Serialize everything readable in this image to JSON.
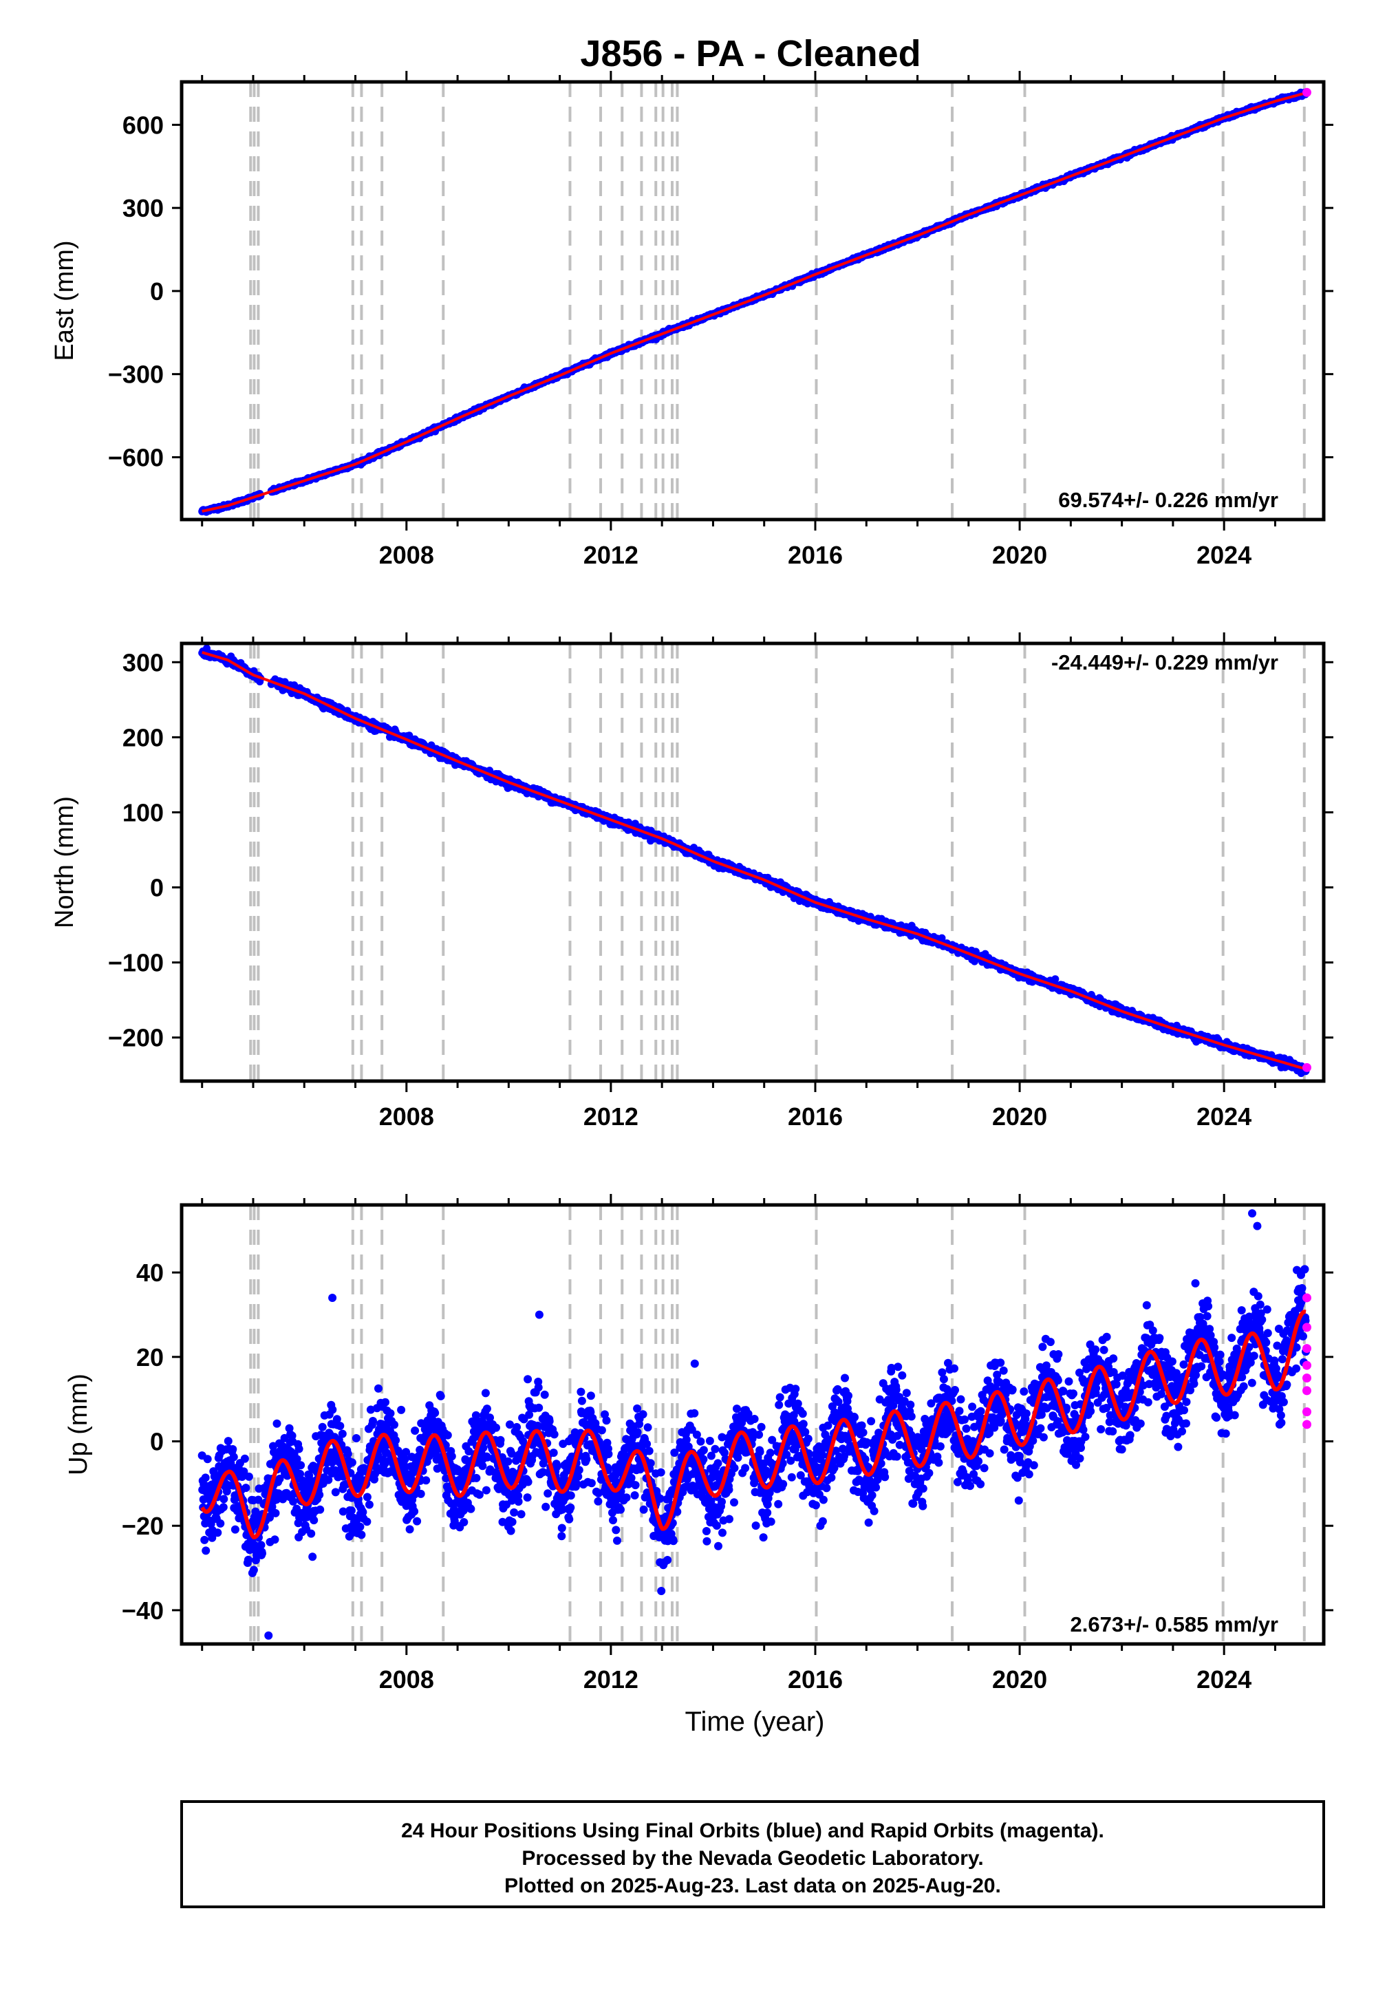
{
  "title": "J856  - PA - Cleaned",
  "colors": {
    "final_orbits": "#0000ff",
    "rapid_orbits": "#ff00ff",
    "model": "#ff0000",
    "event_lines": "#c0c0c0",
    "frame": "#000000"
  },
  "event_line_years": [
    2004.95,
    2005.02,
    2005.1,
    2006.95,
    2007.12,
    2007.52,
    2008.72,
    2011.2,
    2011.8,
    2012.22,
    2012.6,
    2012.88,
    2013.02,
    2013.2,
    2013.3,
    2016.02,
    2018.68,
    2020.1,
    2023.98,
    2025.57
  ],
  "chart_data": [
    {
      "type": "scatter",
      "panel": "east",
      "ylabel": "East (mm)",
      "xlabel": "",
      "xlim": [
        2003.6,
        2025.95
      ],
      "ylim": [
        -825,
        755
      ],
      "yticks": [
        -600,
        -300,
        0,
        300,
        600
      ],
      "xticks": [
        2008,
        2012,
        2016,
        2020,
        2024
      ],
      "grid": false,
      "rate_label": "69.574+/- 0.226 mm/yr",
      "rate_position": "bottom-right",
      "series": [
        {
          "x": [
            2004.0,
            2004.5,
            2005.0,
            2006.0,
            2007.0,
            2008.0,
            2009.0,
            2010.0,
            2011.0,
            2012.0,
            2013.0,
            2014.0,
            2015.0,
            2016.0,
            2017.0,
            2018.0,
            2019.0,
            2020.0,
            2021.0,
            2022.0,
            2023.0,
            2024.0,
            2025.0,
            2025.6
          ],
          "y": [
            -795,
            -775,
            -745,
            -685,
            -625,
            -545,
            -460,
            -380,
            -305,
            -225,
            -155,
            -85,
            -15,
            60,
            130,
            200,
            275,
            345,
            415,
            485,
            555,
            625,
            685,
            715
          ]
        }
      ],
      "rapid": {
        "x": [
          2025.62
        ],
        "y": [
          717
        ]
      }
    },
    {
      "type": "scatter",
      "panel": "north",
      "ylabel": "North (mm)",
      "xlabel": "",
      "xlim": [
        2003.6,
        2025.95
      ],
      "ylim": [
        -258,
        325
      ],
      "yticks": [
        -200,
        -100,
        0,
        100,
        200,
        300
      ],
      "xticks": [
        2008,
        2012,
        2016,
        2020,
        2024
      ],
      "grid": false,
      "rate_label": "-24.449+/- 0.229 mm/yr",
      "rate_position": "top-right",
      "series": [
        {
          "x": [
            2004.0,
            2004.5,
            2005.0,
            2006.0,
            2007.0,
            2008.0,
            2009.0,
            2010.0,
            2011.0,
            2012.0,
            2013.0,
            2014.0,
            2015.0,
            2016.0,
            2017.0,
            2018.0,
            2019.0,
            2020.0,
            2021.0,
            2022.0,
            2023.0,
            2024.0,
            2025.0,
            2025.6
          ],
          "y": [
            313,
            303,
            283,
            258,
            225,
            197,
            168,
            140,
            115,
            90,
            65,
            35,
            10,
            -20,
            -42,
            -62,
            -88,
            -115,
            -138,
            -165,
            -188,
            -210,
            -230,
            -242
          ]
        }
      ],
      "rapid": {
        "x": [
          2025.62
        ],
        "y": [
          -240
        ]
      }
    },
    {
      "type": "scatter",
      "panel": "up",
      "ylabel": "Up (mm)",
      "xlabel": "Time (year)",
      "xlim": [
        2003.6,
        2025.95
      ],
      "ylim": [
        -48,
        56
      ],
      "yticks": [
        -40,
        -20,
        0,
        20,
        40
      ],
      "xticks": [
        2008,
        2012,
        2016,
        2020,
        2024
      ],
      "grid": false,
      "rate_label": "2.673+/- 0.585 mm/yr",
      "rate_position": "bottom-right",
      "series": [
        {
          "x": [
            2004.0,
            2004.5,
            2005.0,
            2006.0,
            2007.0,
            2008.0,
            2009.0,
            2010.0,
            2011.0,
            2012.0,
            2013.0,
            2014.0,
            2015.0,
            2016.0,
            2017.0,
            2018.0,
            2019.0,
            2020.0,
            2021.0,
            2022.0,
            2023.0,
            2024.0,
            2025.0,
            2025.6
          ],
          "y": [
            -9,
            -14,
            -16,
            -8,
            -6,
            -5,
            -6,
            -4,
            -5,
            -4,
            -14,
            -6,
            -4,
            -3,
            -1,
            1,
            3,
            6,
            9,
            12,
            16,
            18,
            19,
            24
          ],
          "seasonal_amplitude": 7,
          "scatter_sigma": 5
        }
      ],
      "outliers": {
        "x": [
          2006.55,
          2010.6,
          2005.3,
          2024.55,
          2024.65,
          2012.1
        ],
        "y": [
          34,
          30,
          -46,
          54,
          51,
          -21
        ]
      },
      "rapid": {
        "x": [
          2025.62,
          2025.62,
          2025.62,
          2025.62,
          2025.62,
          2025.62,
          2025.62,
          2025.62
        ],
        "y": [
          34,
          27,
          22,
          18,
          15,
          12,
          7,
          4
        ]
      }
    }
  ],
  "footer": {
    "line1": "24 Hour Positions Using Final Orbits (blue) and Rapid Orbits (magenta).",
    "line2": "Processed by the Nevada Geodetic Laboratory.",
    "line3": "Plotted on 2025-Aug-23. Last data on 2025-Aug-20."
  }
}
